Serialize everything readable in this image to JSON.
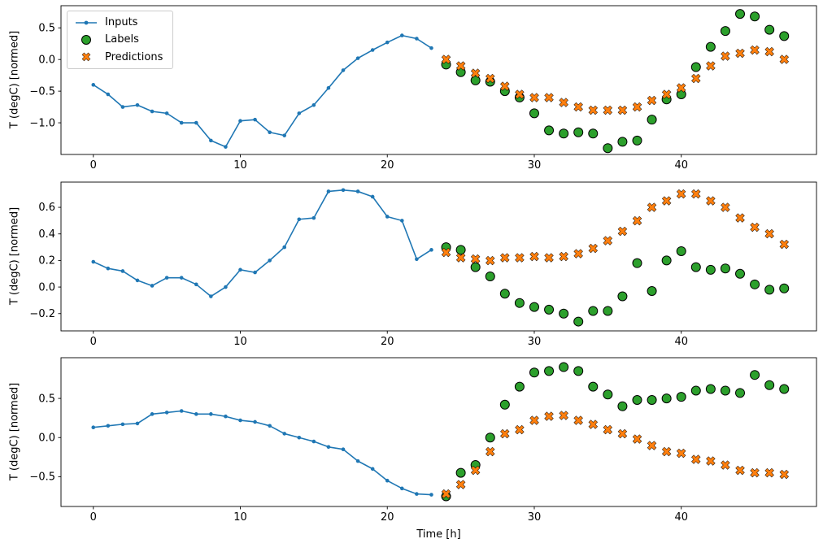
{
  "figure": {
    "xlabel": "Time [h]",
    "ylabel": "T (degC) [normed]",
    "colors": {
      "inputs": "#1f77b4",
      "labels": "#2ca02c",
      "predictions": "#ff7f0e",
      "marker_edge": "#000000"
    },
    "legend": [
      {
        "label": "Inputs",
        "marker": "line-dot",
        "color": "#1f77b4"
      },
      {
        "label": "Labels",
        "marker": "circle",
        "color": "#2ca02c"
      },
      {
        "label": "Predictions",
        "marker": "x",
        "color": "#ff7f0e"
      }
    ]
  },
  "chart_data": [
    {
      "type": "line",
      "title": "",
      "ylabel": "T (degC) [normed]",
      "xlabel": "",
      "xlim": [
        -2.2,
        49.2
      ],
      "ylim": [
        -1.5,
        0.85
      ],
      "xticks": [
        0,
        10,
        20,
        30,
        40
      ],
      "yticks": [
        0.5,
        0.0,
        -0.5,
        -1.0
      ],
      "grid": false,
      "legend_position": "upper left",
      "series": [
        {
          "name": "Inputs",
          "type": "line",
          "color": "#1f77b4",
          "x": [
            0,
            1,
            2,
            3,
            4,
            5,
            6,
            7,
            8,
            9,
            10,
            11,
            12,
            13,
            14,
            15,
            16,
            17,
            18,
            19,
            20,
            21,
            22,
            23
          ],
          "y": [
            -0.4,
            -0.55,
            -0.75,
            -0.72,
            -0.82,
            -0.85,
            -1.0,
            -1.0,
            -1.28,
            -1.38,
            -0.97,
            -0.95,
            -1.15,
            -1.2,
            -0.85,
            -0.72,
            -0.45,
            -0.17,
            0.02,
            0.15,
            0.27,
            0.38,
            0.33,
            0.18
          ]
        },
        {
          "name": "Labels",
          "type": "scatter-circle",
          "color": "#2ca02c",
          "x": [
            24,
            25,
            26,
            27,
            28,
            29,
            30,
            31,
            32,
            33,
            34,
            35,
            36,
            37,
            38,
            39,
            40,
            41,
            42,
            43,
            44,
            45,
            46,
            47
          ],
          "y": [
            -0.08,
            -0.2,
            -0.33,
            -0.35,
            -0.5,
            -0.6,
            -0.85,
            -1.12,
            -1.17,
            -1.15,
            -1.17,
            -1.4,
            -1.3,
            -1.28,
            -0.95,
            -0.63,
            -0.55,
            -0.12,
            0.2,
            0.45,
            0.72,
            0.68,
            0.47,
            0.37
          ]
        },
        {
          "name": "Predictions",
          "type": "scatter-x",
          "color": "#ff7f0e",
          "x": [
            24,
            25,
            26,
            27,
            28,
            29,
            30,
            31,
            32,
            33,
            34,
            35,
            36,
            37,
            38,
            39,
            40,
            41,
            42,
            43,
            44,
            45,
            46,
            47
          ],
          "y": [
            0.0,
            -0.1,
            -0.22,
            -0.3,
            -0.42,
            -0.55,
            -0.6,
            -0.6,
            -0.68,
            -0.75,
            -0.8,
            -0.8,
            -0.8,
            -0.75,
            -0.65,
            -0.55,
            -0.45,
            -0.3,
            -0.1,
            0.05,
            0.1,
            0.15,
            0.12,
            0.0
          ]
        }
      ]
    },
    {
      "type": "line",
      "title": "",
      "ylabel": "T (degC) [normed]",
      "xlabel": "",
      "xlim": [
        -2.2,
        49.2
      ],
      "ylim": [
        -0.33,
        0.79
      ],
      "xticks": [
        0,
        10,
        20,
        30,
        40
      ],
      "yticks": [
        0.6,
        0.4,
        0.2,
        0.0,
        -0.2
      ],
      "grid": false,
      "series": [
        {
          "name": "Inputs",
          "type": "line",
          "color": "#1f77b4",
          "x": [
            0,
            1,
            2,
            3,
            4,
            5,
            6,
            7,
            8,
            9,
            10,
            11,
            12,
            13,
            14,
            15,
            16,
            17,
            18,
            19,
            20,
            21,
            22,
            23
          ],
          "y": [
            0.19,
            0.14,
            0.12,
            0.05,
            0.01,
            0.07,
            0.07,
            0.02,
            -0.07,
            0.0,
            0.13,
            0.11,
            0.2,
            0.3,
            0.51,
            0.52,
            0.72,
            0.73,
            0.72,
            0.68,
            0.53,
            0.5,
            0.21,
            0.28
          ]
        },
        {
          "name": "Labels",
          "type": "scatter-circle",
          "color": "#2ca02c",
          "x": [
            24,
            25,
            26,
            27,
            28,
            29,
            30,
            31,
            32,
            33,
            34,
            35,
            36,
            37,
            38,
            39,
            40,
            41,
            42,
            43,
            44,
            45,
            46,
            47
          ],
          "y": [
            0.3,
            0.28,
            0.15,
            0.08,
            -0.05,
            -0.12,
            -0.15,
            -0.17,
            -0.2,
            -0.26,
            -0.18,
            -0.18,
            -0.07,
            0.18,
            -0.03,
            0.2,
            0.27,
            0.15,
            0.13,
            0.14,
            0.1,
            0.02,
            -0.02,
            -0.01
          ]
        },
        {
          "name": "Predictions",
          "type": "scatter-x",
          "color": "#ff7f0e",
          "x": [
            24,
            25,
            26,
            27,
            28,
            29,
            30,
            31,
            32,
            33,
            34,
            35,
            36,
            37,
            38,
            39,
            40,
            41,
            42,
            43,
            44,
            45,
            46,
            47
          ],
          "y": [
            0.26,
            0.22,
            0.21,
            0.2,
            0.22,
            0.22,
            0.23,
            0.22,
            0.23,
            0.25,
            0.29,
            0.35,
            0.42,
            0.5,
            0.6,
            0.65,
            0.7,
            0.7,
            0.65,
            0.6,
            0.52,
            0.45,
            0.4,
            0.32
          ]
        }
      ]
    },
    {
      "type": "line",
      "title": "",
      "ylabel": "T (degC) [normed]",
      "xlabel": "Time [h]",
      "xlim": [
        -2.2,
        49.2
      ],
      "ylim": [
        -0.88,
        1.02
      ],
      "xticks": [
        0,
        10,
        20,
        30,
        40
      ],
      "yticks": [
        0.5,
        0.0,
        -0.5
      ],
      "grid": false,
      "series": [
        {
          "name": "Inputs",
          "type": "line",
          "color": "#1f77b4",
          "x": [
            0,
            1,
            2,
            3,
            4,
            5,
            6,
            7,
            8,
            9,
            10,
            11,
            12,
            13,
            14,
            15,
            16,
            17,
            18,
            19,
            20,
            21,
            22,
            23
          ],
          "y": [
            0.13,
            0.15,
            0.17,
            0.18,
            0.3,
            0.32,
            0.34,
            0.3,
            0.3,
            0.27,
            0.22,
            0.2,
            0.15,
            0.05,
            0.0,
            -0.05,
            -0.12,
            -0.15,
            -0.3,
            -0.4,
            -0.55,
            -0.65,
            -0.72,
            -0.73
          ]
        },
        {
          "name": "Labels",
          "type": "scatter-circle",
          "color": "#2ca02c",
          "x": [
            24,
            25,
            26,
            27,
            28,
            29,
            30,
            31,
            32,
            33,
            34,
            35,
            36,
            37,
            38,
            39,
            40,
            41,
            42,
            43,
            44,
            45,
            46,
            47
          ],
          "y": [
            -0.75,
            -0.45,
            -0.35,
            0.0,
            0.42,
            0.65,
            0.83,
            0.85,
            0.9,
            0.85,
            0.65,
            0.55,
            0.4,
            0.48,
            0.48,
            0.5,
            0.52,
            0.6,
            0.62,
            0.6,
            0.57,
            0.8,
            0.67,
            0.62
          ]
        },
        {
          "name": "Predictions",
          "type": "scatter-x",
          "color": "#ff7f0e",
          "x": [
            24,
            25,
            26,
            27,
            28,
            29,
            30,
            31,
            32,
            33,
            34,
            35,
            36,
            37,
            38,
            39,
            40,
            41,
            42,
            43,
            44,
            45,
            46,
            47
          ],
          "y": [
            -0.72,
            -0.6,
            -0.42,
            -0.18,
            0.05,
            0.1,
            0.22,
            0.27,
            0.28,
            0.22,
            0.17,
            0.1,
            0.05,
            -0.02,
            -0.1,
            -0.18,
            -0.2,
            -0.28,
            -0.3,
            -0.35,
            -0.42,
            -0.45,
            -0.45,
            -0.47
          ]
        }
      ]
    }
  ]
}
